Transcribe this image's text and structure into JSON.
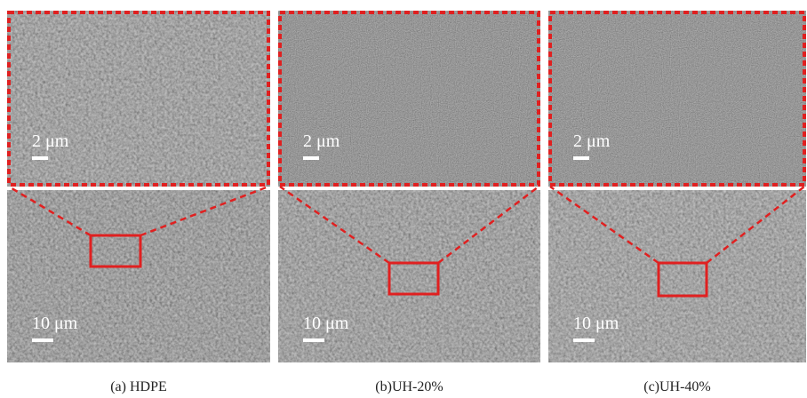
{
  "panels": [
    {
      "caption": "(a) HDPE",
      "zoom_scale": "2 μm",
      "overview_scale": "10 μm"
    },
    {
      "caption": "(b)UH-20%",
      "zoom_scale": "2 μm",
      "overview_scale": "10 μm"
    },
    {
      "caption": "(c)UH-40%",
      "zoom_scale": "2 μm",
      "overview_scale": "10 μm"
    }
  ]
}
